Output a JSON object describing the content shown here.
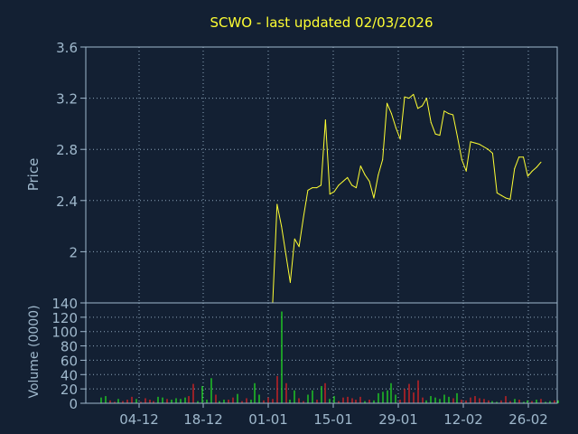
{
  "colors": {
    "background": "#132033",
    "frame": "#9fb8cc",
    "grid": "#8ea6bb",
    "title": "#ffff33",
    "axis_text": "#9fb8cc",
    "price_line": "#ffff33",
    "volume_up": "#22dd22",
    "volume_down": "#dd2222"
  },
  "chart_data": [
    {
      "type": "line",
      "title": "SCWO - last updated 02/03/2026",
      "ylabel": "Price",
      "ylim": [
        1.6,
        3.6
      ],
      "yticks": [
        "2",
        "2.4",
        "2.8",
        "3.2",
        "3.6"
      ],
      "grid": true,
      "x": [
        0,
        1,
        2,
        3,
        4,
        5,
        6,
        7,
        8,
        9,
        10,
        11,
        12,
        13,
        14,
        15,
        16,
        17,
        18,
        19,
        20,
        21,
        22,
        23,
        24,
        25,
        26,
        27,
        28,
        29,
        30,
        31,
        32,
        33,
        34,
        35,
        36,
        37,
        38,
        39,
        40,
        41,
        42,
        43,
        44,
        45,
        46,
        47,
        48,
        49,
        50,
        51,
        52,
        53,
        54,
        55,
        56,
        57,
        58,
        59,
        60,
        61,
        62,
        63,
        64,
        65,
        66,
        67,
        68,
        69,
        70,
        71,
        72,
        73,
        74,
        75,
        76,
        77,
        78,
        79,
        80,
        81,
        82,
        83,
        84,
        85,
        86,
        87,
        88,
        89,
        90,
        91,
        92,
        93,
        94,
        95,
        96,
        97,
        98,
        99,
        100,
        101,
        102,
        103,
        104
      ],
      "series": [
        {
          "values": [
            null,
            null,
            null,
            null,
            null,
            null,
            null,
            null,
            null,
            null,
            null,
            null,
            null,
            null,
            null,
            null,
            null,
            null,
            null,
            null,
            null,
            null,
            null,
            null,
            null,
            null,
            null,
            null,
            null,
            null,
            null,
            null,
            null,
            null,
            null,
            null,
            null,
            null,
            null,
            1.6,
            2.37,
            2.2,
            1.98,
            1.76,
            2.1,
            2.04,
            2.27,
            2.48,
            2.5,
            2.5,
            2.52,
            3.03,
            2.45,
            2.47,
            2.52,
            2.55,
            2.58,
            2.52,
            2.5,
            2.67,
            2.6,
            2.55,
            2.42,
            2.6,
            2.72,
            3.16,
            3.08,
            2.97,
            2.88,
            3.21,
            3.2,
            3.23,
            3.12,
            3.14,
            3.2,
            3.01,
            2.92,
            2.91,
            3.1,
            3.08,
            3.07,
            2.9,
            2.72,
            2.63,
            2.86,
            2.85,
            2.84,
            2.82,
            2.8,
            2.77,
            2.46,
            2.44,
            2.42,
            2.41,
            2.65,
            2.74,
            2.74,
            2.59,
            2.63,
            2.66,
            2.7,
            null,
            null,
            null,
            null
          ]
        }
      ]
    },
    {
      "type": "bar",
      "ylabel": "Volume (0000)",
      "ylim": [
        0,
        140
      ],
      "yticks": [
        "0",
        "20",
        "40",
        "60",
        "80",
        "100",
        "120",
        "140"
      ],
      "grid": true,
      "categories": [
        "04-12",
        "18-12",
        "01-01",
        "15-01",
        "29-01",
        "12-02",
        "26-02"
      ],
      "x": [
        0,
        1,
        2,
        3,
        4,
        5,
        6,
        7,
        8,
        9,
        10,
        11,
        12,
        13,
        14,
        15,
        16,
        17,
        18,
        19,
        20,
        21,
        22,
        23,
        24,
        25,
        26,
        27,
        28,
        29,
        30,
        31,
        32,
        33,
        34,
        35,
        36,
        37,
        38,
        39,
        40,
        41,
        42,
        43,
        44,
        45,
        46,
        47,
        48,
        49,
        50,
        51,
        52,
        53,
        54,
        55,
        56,
        57,
        58,
        59,
        60,
        61,
        62,
        63,
        64,
        65,
        66,
        67,
        68,
        69,
        70,
        71,
        72,
        73,
        74,
        75,
        76,
        77,
        78,
        79,
        80,
        81,
        82,
        83,
        84,
        85,
        86,
        87,
        88,
        89,
        90,
        91,
        92,
        93,
        94,
        95,
        96,
        97,
        98,
        99,
        100,
        101,
        102,
        103,
        104
      ],
      "values": [
        8,
        10,
        4,
        2,
        6,
        3,
        5,
        9,
        6,
        2,
        7,
        5,
        3,
        9,
        8,
        6,
        5,
        7,
        6,
        8,
        10,
        27,
        3,
        24,
        5,
        35,
        12,
        3,
        5,
        5,
        8,
        13,
        3,
        7,
        5,
        28,
        12,
        4,
        8,
        6,
        38,
        128,
        28,
        5,
        18,
        7,
        3,
        12,
        18,
        5,
        24,
        28,
        6,
        10,
        3,
        8,
        9,
        7,
        5,
        9,
        3,
        5,
        4,
        14,
        16,
        18,
        28,
        12,
        5,
        20,
        27,
        15,
        32,
        8,
        4,
        10,
        8,
        6,
        12,
        9,
        7,
        14,
        5,
        4,
        8,
        10,
        7,
        6,
        4,
        3,
        2,
        4,
        10,
        3,
        6,
        5,
        2,
        4,
        3,
        5,
        6,
        2,
        3,
        4,
        4
      ],
      "up": [
        1,
        1,
        0,
        0,
        1,
        0,
        0,
        0,
        1,
        0,
        0,
        0,
        0,
        1,
        1,
        0,
        1,
        1,
        1,
        1,
        0,
        0,
        1,
        1,
        1,
        1,
        0,
        1,
        1,
        0,
        0,
        1,
        0,
        0,
        1,
        1,
        1,
        0,
        0,
        0,
        0,
        1,
        0,
        1,
        1,
        0,
        0,
        1,
        1,
        0,
        1,
        0,
        1,
        1,
        0,
        0,
        0,
        0,
        0,
        0,
        1,
        0,
        1,
        1,
        1,
        1,
        1,
        1,
        0,
        0,
        0,
        0,
        0,
        0,
        1,
        1,
        1,
        1,
        1,
        1,
        0,
        1,
        0,
        0,
        0,
        0,
        0,
        0,
        0,
        1,
        1,
        0,
        0,
        0,
        1,
        0,
        1,
        1,
        0,
        1,
        0,
        1,
        1,
        0,
        1
      ]
    }
  ]
}
